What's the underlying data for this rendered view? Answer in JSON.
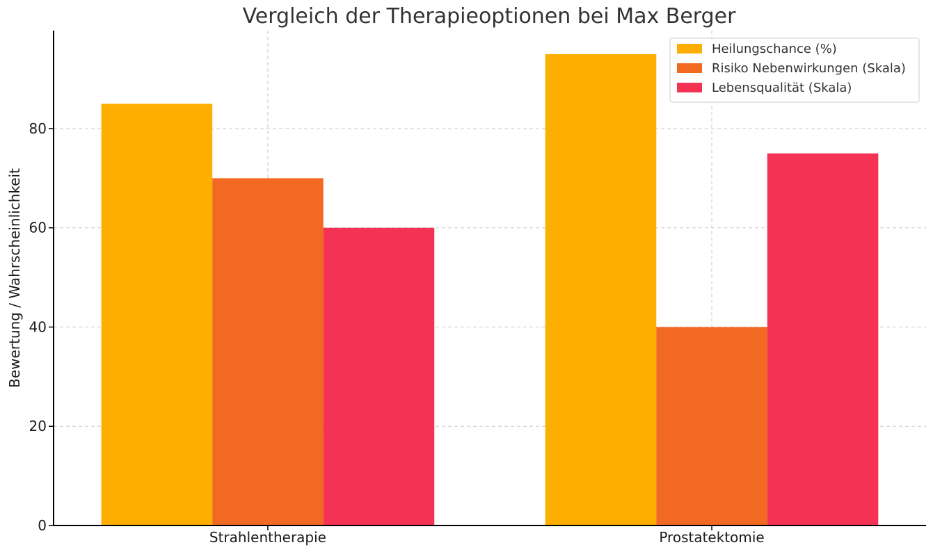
{
  "chart_data": {
    "type": "bar",
    "title": "Vergleich der Therapieoptionen bei Max Berger",
    "xlabel": "",
    "ylabel": "Bewertung / Wahrscheinlichkeit",
    "categories": [
      "Strahlentherapie",
      "Prostatektomie"
    ],
    "series": [
      {
        "name": "Heilungschance (%)",
        "values": [
          85,
          95
        ],
        "color": "#fdae00"
      },
      {
        "name": "Risiko Nebenwirkungen (Skala)",
        "values": [
          70,
          40
        ],
        "color": "#f26922"
      },
      {
        "name": "Lebensqualität (Skala)",
        "values": [
          60,
          75
        ],
        "color": "#f43254"
      }
    ],
    "ylim": [
      0,
      99.75
    ],
    "yticks": [
      0,
      20,
      40,
      60,
      80
    ],
    "grid": true,
    "legend_position": "top-right"
  }
}
